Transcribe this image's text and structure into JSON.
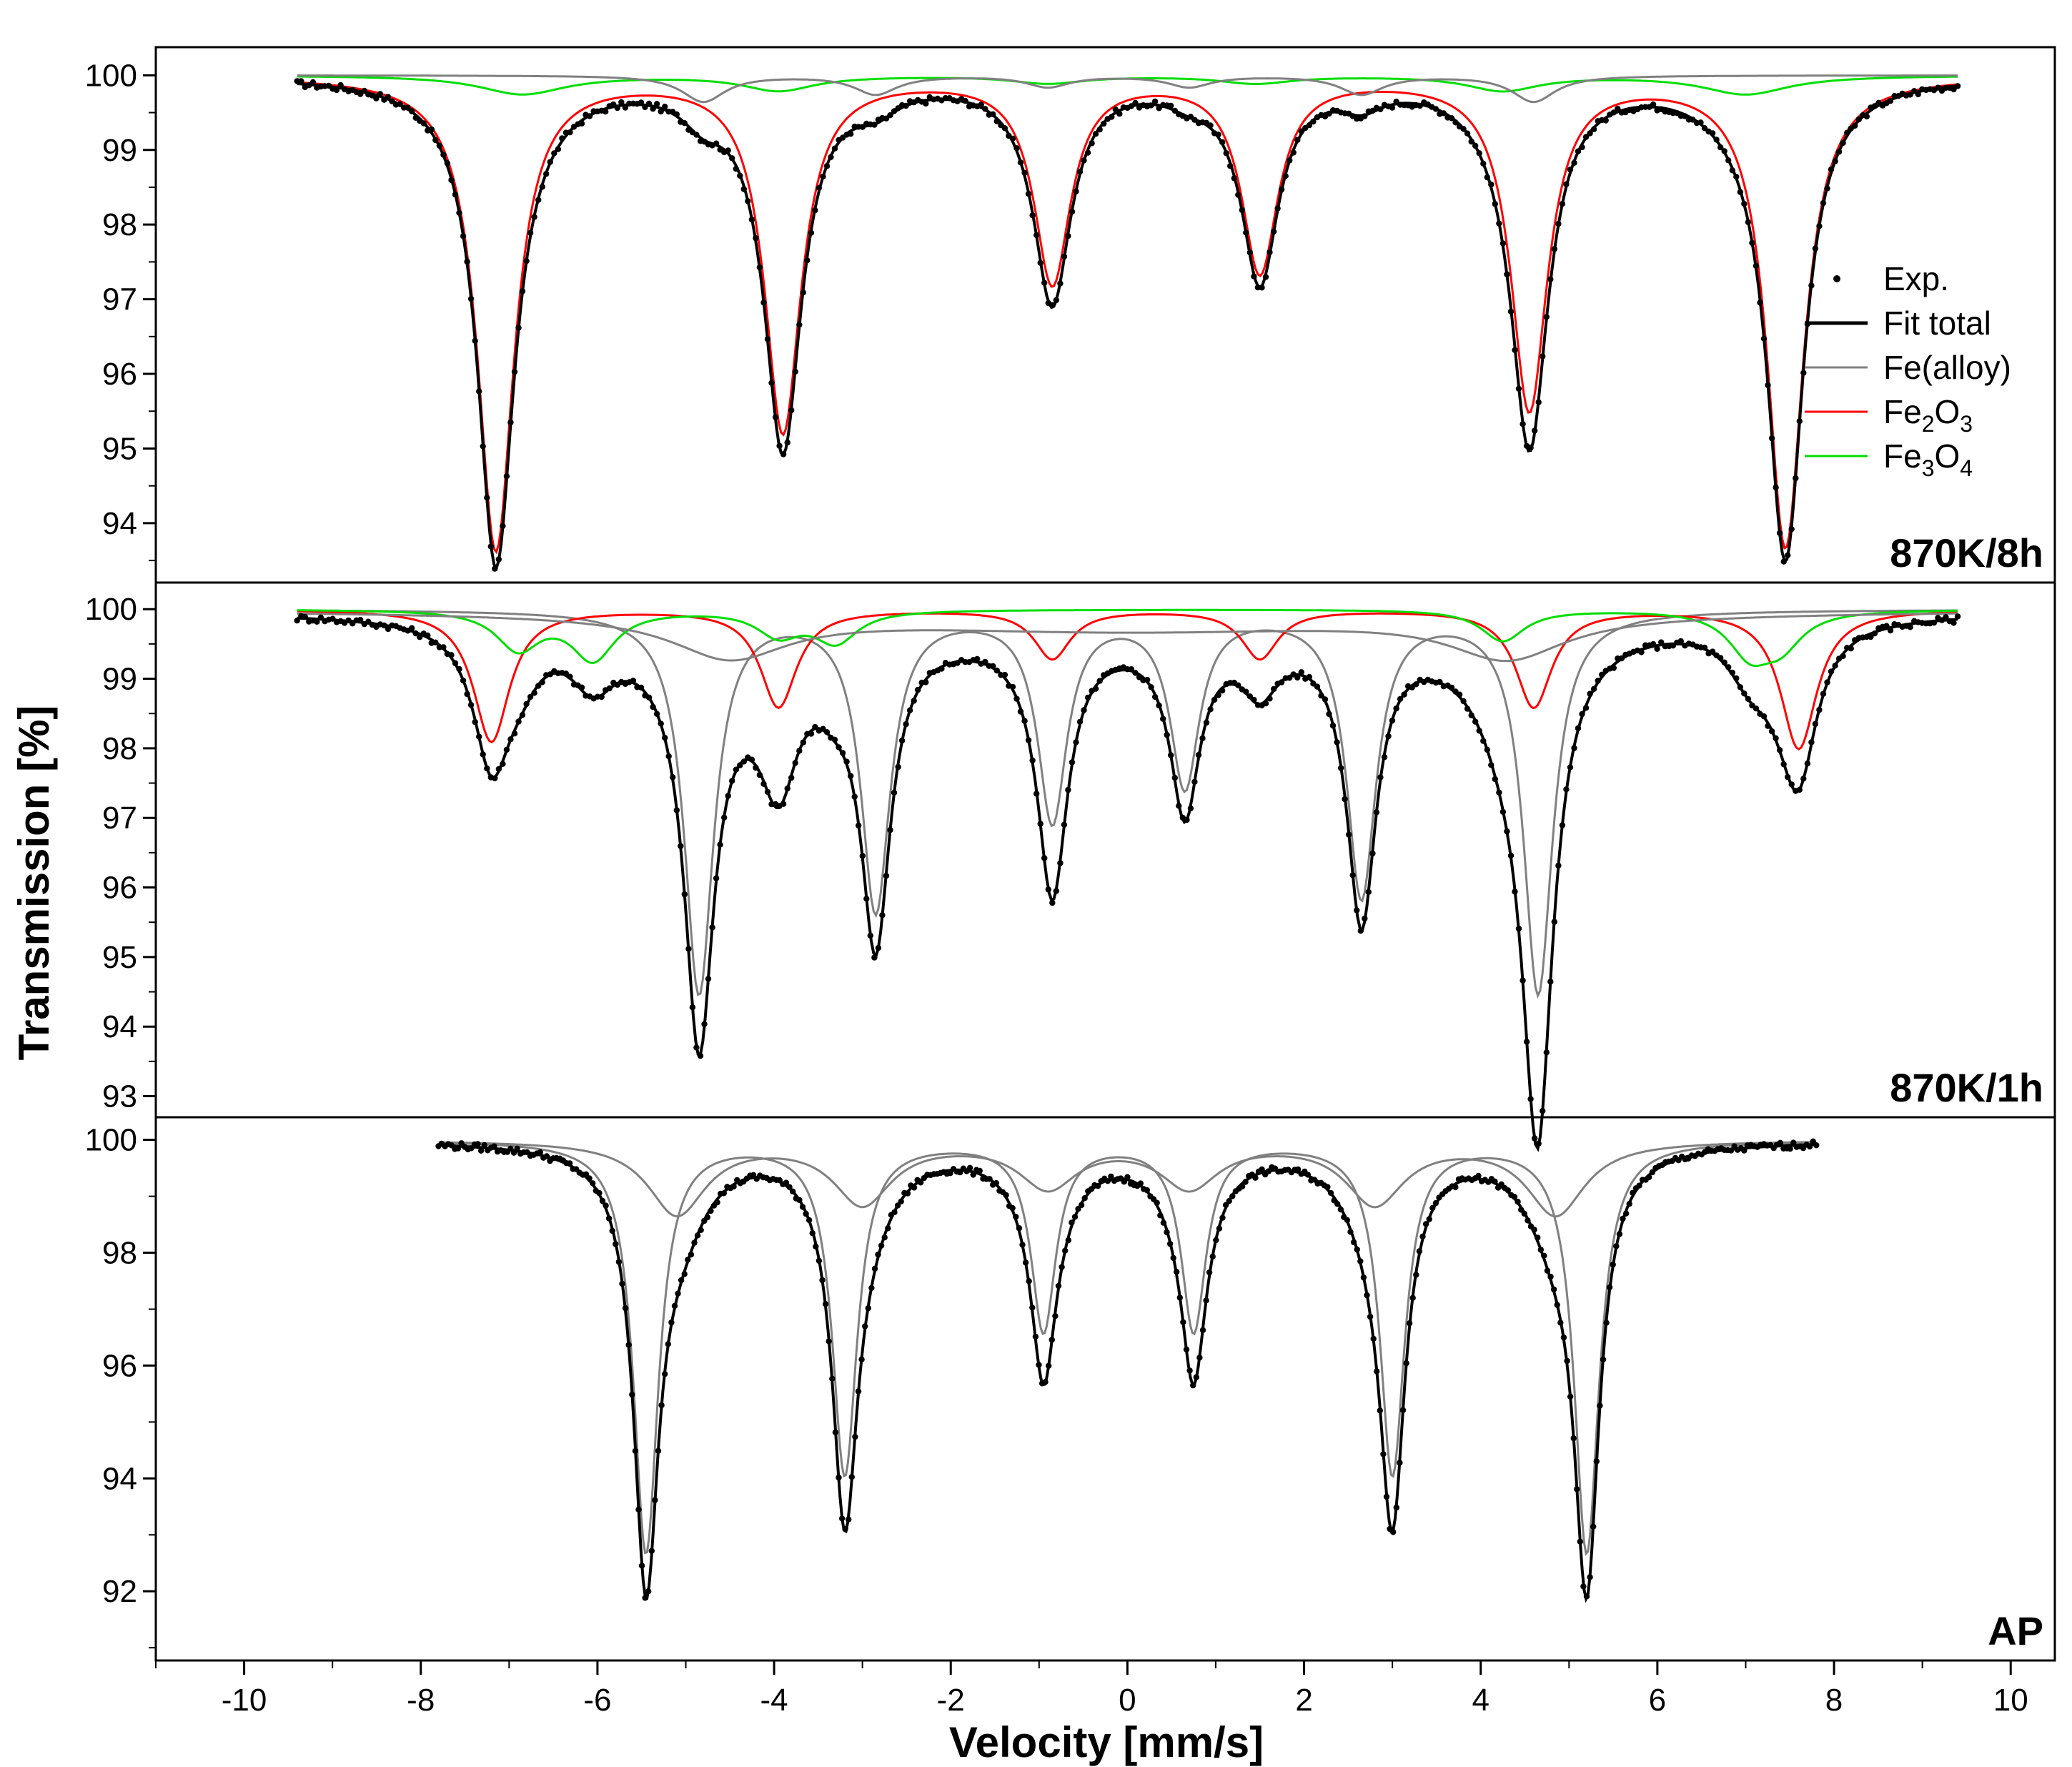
{
  "chart_data": {
    "type": "line",
    "description_xlabel": "Velocity [mm/s]",
    "xlabel": "Velocity [mm/s]",
    "ylabel": "Transmission [%]",
    "xlim": [
      -11,
      10.5
    ],
    "x_ticks": [
      -10,
      -8,
      -6,
      -4,
      -2,
      0,
      2,
      4,
      6,
      8,
      10
    ],
    "x_tick_labels": [
      "-10",
      "-8",
      "-6",
      "-4",
      "-2",
      "0",
      "2",
      "4",
      "6",
      "8",
      "10"
    ],
    "colors": {
      "exp": "#000000",
      "fit_total": "#000000",
      "alloy": "#808080",
      "fe2o3": "#ff0000",
      "fe3o4": "#00dd00"
    },
    "legend": {
      "placement": "right",
      "entries": [
        {
          "key": "exp",
          "label": "Exp.",
          "kind": "marker"
        },
        {
          "key": "fit_total",
          "label": "Fit total",
          "kind": "line"
        },
        {
          "key": "alloy",
          "label": "Fe(alloy)",
          "kind": "line"
        },
        {
          "key": "fe2o3",
          "label": "Fe2O3",
          "kind": "line",
          "formula": [
            "Fe",
            "2",
            "O",
            "3"
          ]
        },
        {
          "key": "fe3o4",
          "label": "Fe3O4",
          "kind": "line",
          "formula": [
            "Fe",
            "3",
            "O",
            "4"
          ]
        }
      ]
    },
    "panels": [
      {
        "label": "870K/8h",
        "ylim": [
          93.3,
          100.3
        ],
        "y_ticks": [
          94,
          95,
          96,
          97,
          98,
          99,
          100
        ],
        "y_tick_labels": [
          "94",
          "95",
          "96",
          "97",
          "98",
          "99",
          "100"
        ],
        "x_range": [
          -9.4,
          9.4
        ],
        "components": [
          {
            "name": "Fe2O3",
            "key": "fe2o3",
            "peaks": [
              {
                "pos": -7.15,
                "depth": 6.35,
                "width": 0.25
              },
              {
                "pos": -3.9,
                "depth": 4.75,
                "width": 0.25
              },
              {
                "pos": -0.85,
                "depth": 2.75,
                "width": 0.25
              },
              {
                "pos": 1.5,
                "depth": 2.6,
                "width": 0.25
              },
              {
                "pos": 4.55,
                "depth": 4.45,
                "width": 0.25
              },
              {
                "pos": 7.45,
                "depth": 6.3,
                "width": 0.25
              }
            ]
          },
          {
            "name": "Fe3O4",
            "key": "fe3o4",
            "peaks": [
              {
                "pos": -6.85,
                "depth": 0.25,
                "width": 0.6
              },
              {
                "pos": -3.95,
                "depth": 0.2,
                "width": 0.5
              },
              {
                "pos": -0.9,
                "depth": 0.1,
                "width": 0.5
              },
              {
                "pos": 1.45,
                "depth": 0.1,
                "width": 0.5
              },
              {
                "pos": 4.25,
                "depth": 0.2,
                "width": 0.5
              },
              {
                "pos": 7.0,
                "depth": 0.25,
                "width": 0.6
              }
            ]
          },
          {
            "name": "Fe(alloy)",
            "key": "alloy",
            "peaks": [
              {
                "pos": -4.8,
                "depth": 0.35,
                "width": 0.3
              },
              {
                "pos": -2.85,
                "depth": 0.25,
                "width": 0.3
              },
              {
                "pos": -0.9,
                "depth": 0.15,
                "width": 0.3
              },
              {
                "pos": 0.7,
                "depth": 0.15,
                "width": 0.3
              },
              {
                "pos": 2.65,
                "depth": 0.25,
                "width": 0.3
              },
              {
                "pos": 4.6,
                "depth": 0.35,
                "width": 0.3
              }
            ]
          }
        ]
      },
      {
        "label": "870K/1h",
        "ylim": [
          92.8,
          100.3
        ],
        "y_ticks": [
          93,
          94,
          95,
          96,
          97,
          98,
          99,
          100
        ],
        "y_tick_labels": [
          "93",
          "94",
          "95",
          "96",
          "97",
          "98",
          "99",
          "100"
        ],
        "x_range": [
          -9.4,
          9.4
        ],
        "components": [
          {
            "name": "Fe(alloy)",
            "key": "alloy",
            "peaks": [
              {
                "pos": -4.85,
                "depth": 5.5,
                "width": 0.2
              },
              {
                "pos": -2.85,
                "depth": 4.3,
                "width": 0.2
              },
              {
                "pos": -0.85,
                "depth": 3.0,
                "width": 0.2
              },
              {
                "pos": 0.65,
                "depth": 2.5,
                "width": 0.2
              },
              {
                "pos": 2.65,
                "depth": 4.1,
                "width": 0.2
              },
              {
                "pos": 4.65,
                "depth": 5.5,
                "width": 0.2
              }
            ]
          },
          {
            "name": "Fe2O3",
            "key": "fe2o3",
            "peaks": [
              {
                "pos": -7.2,
                "depth": 1.9,
                "width": 0.25
              },
              {
                "pos": -3.95,
                "depth": 1.4,
                "width": 0.25
              },
              {
                "pos": -0.85,
                "depth": 0.7,
                "width": 0.25
              },
              {
                "pos": 1.5,
                "depth": 0.7,
                "width": 0.25
              },
              {
                "pos": 4.6,
                "depth": 1.4,
                "width": 0.25
              },
              {
                "pos": 7.6,
                "depth": 2.0,
                "width": 0.25
              }
            ]
          },
          {
            "name": "Fe3O4",
            "key": "fe3o4",
            "peaks": [
              {
                "pos": -6.9,
                "depth": 0.55,
                "width": 0.3
              },
              {
                "pos": -6.05,
                "depth": 0.7,
                "width": 0.3
              },
              {
                "pos": -3.95,
                "depth": 0.35,
                "width": 0.3
              },
              {
                "pos": -3.3,
                "depth": 0.45,
                "width": 0.3
              },
              {
                "pos": 4.25,
                "depth": 0.45,
                "width": 0.3
              },
              {
                "pos": 7.05,
                "depth": 0.6,
                "width": 0.3
              },
              {
                "pos": 7.4,
                "depth": 0.45,
                "width": 0.3
              }
            ]
          },
          {
            "name": "Fe(alloy) broad",
            "key": "alloy",
            "peaks": [
              {
                "pos": -4.5,
                "depth": 0.6,
                "width": 0.8
              },
              {
                "pos": 4.3,
                "depth": 0.6,
                "width": 0.8
              },
              {
                "pos": 0.0,
                "depth": 0.3,
                "width": 4.0
              }
            ]
          }
        ]
      },
      {
        "label": "AP",
        "ylim": [
          90.9,
          100.3
        ],
        "y_ticks": [
          92,
          94,
          96,
          98,
          100
        ],
        "y_tick_labels": [
          "92",
          "94",
          "96",
          "98",
          "100"
        ],
        "x_range": [
          -7.8,
          7.8
        ],
        "components": [
          {
            "name": "Fe(alloy) sharp",
            "key": "alloy",
            "peaks": [
              {
                "pos": -5.45,
                "depth": 7.3,
                "width": 0.17
              },
              {
                "pos": -3.2,
                "depth": 5.9,
                "width": 0.17
              },
              {
                "pos": -0.95,
                "depth": 3.35,
                "width": 0.17
              },
              {
                "pos": 0.75,
                "depth": 3.35,
                "width": 0.17
              },
              {
                "pos": 3.0,
                "depth": 5.9,
                "width": 0.17
              },
              {
                "pos": 5.2,
                "depth": 7.3,
                "width": 0.17
              }
            ]
          },
          {
            "name": "Fe(alloy) broad",
            "key": "alloy",
            "peaks": [
              {
                "pos": -5.1,
                "depth": 1.3,
                "width": 0.4
              },
              {
                "pos": -3.0,
                "depth": 1.1,
                "width": 0.4
              },
              {
                "pos": -0.9,
                "depth": 0.8,
                "width": 0.4
              },
              {
                "pos": 0.7,
                "depth": 0.8,
                "width": 0.4
              },
              {
                "pos": 2.8,
                "depth": 1.1,
                "width": 0.4
              },
              {
                "pos": 4.85,
                "depth": 1.3,
                "width": 0.4
              }
            ]
          }
        ]
      }
    ]
  }
}
